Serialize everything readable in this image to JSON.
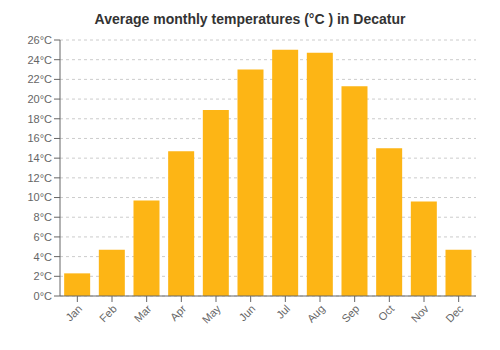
{
  "chart_data": {
    "type": "bar",
    "title": "Average monthly temperatures (°C ) in Decatur",
    "categories": [
      "Jan",
      "Feb",
      "Mar",
      "Apr",
      "May",
      "Jun",
      "Jul",
      "Aug",
      "Sep",
      "Oct",
      "Nov",
      "Dec"
    ],
    "values": [
      2.3,
      4.7,
      9.7,
      14.7,
      18.9,
      23.0,
      25.0,
      24.7,
      21.3,
      15.0,
      9.6,
      4.7
    ],
    "color": "#FDB515",
    "ylim": [
      0,
      26
    ],
    "yticks": [
      {
        "value": 0,
        "label": "0°C"
      },
      {
        "value": 2,
        "label": "2°C"
      },
      {
        "value": 4,
        "label": "4°C"
      },
      {
        "value": 6,
        "label": "6°C"
      },
      {
        "value": 8,
        "label": "8°C"
      },
      {
        "value": 10,
        "label": "10°C"
      },
      {
        "value": 12,
        "label": "12°C"
      },
      {
        "value": 14,
        "label": "14°C"
      },
      {
        "value": 16,
        "label": "16°C"
      },
      {
        "value": 18,
        "label": "18°C"
      },
      {
        "value": 20,
        "label": "20°C"
      },
      {
        "value": 22,
        "label": "22°C"
      },
      {
        "value": 24,
        "label": "24°C"
      },
      {
        "value": 26,
        "label": "26°C"
      }
    ],
    "grid": true
  }
}
